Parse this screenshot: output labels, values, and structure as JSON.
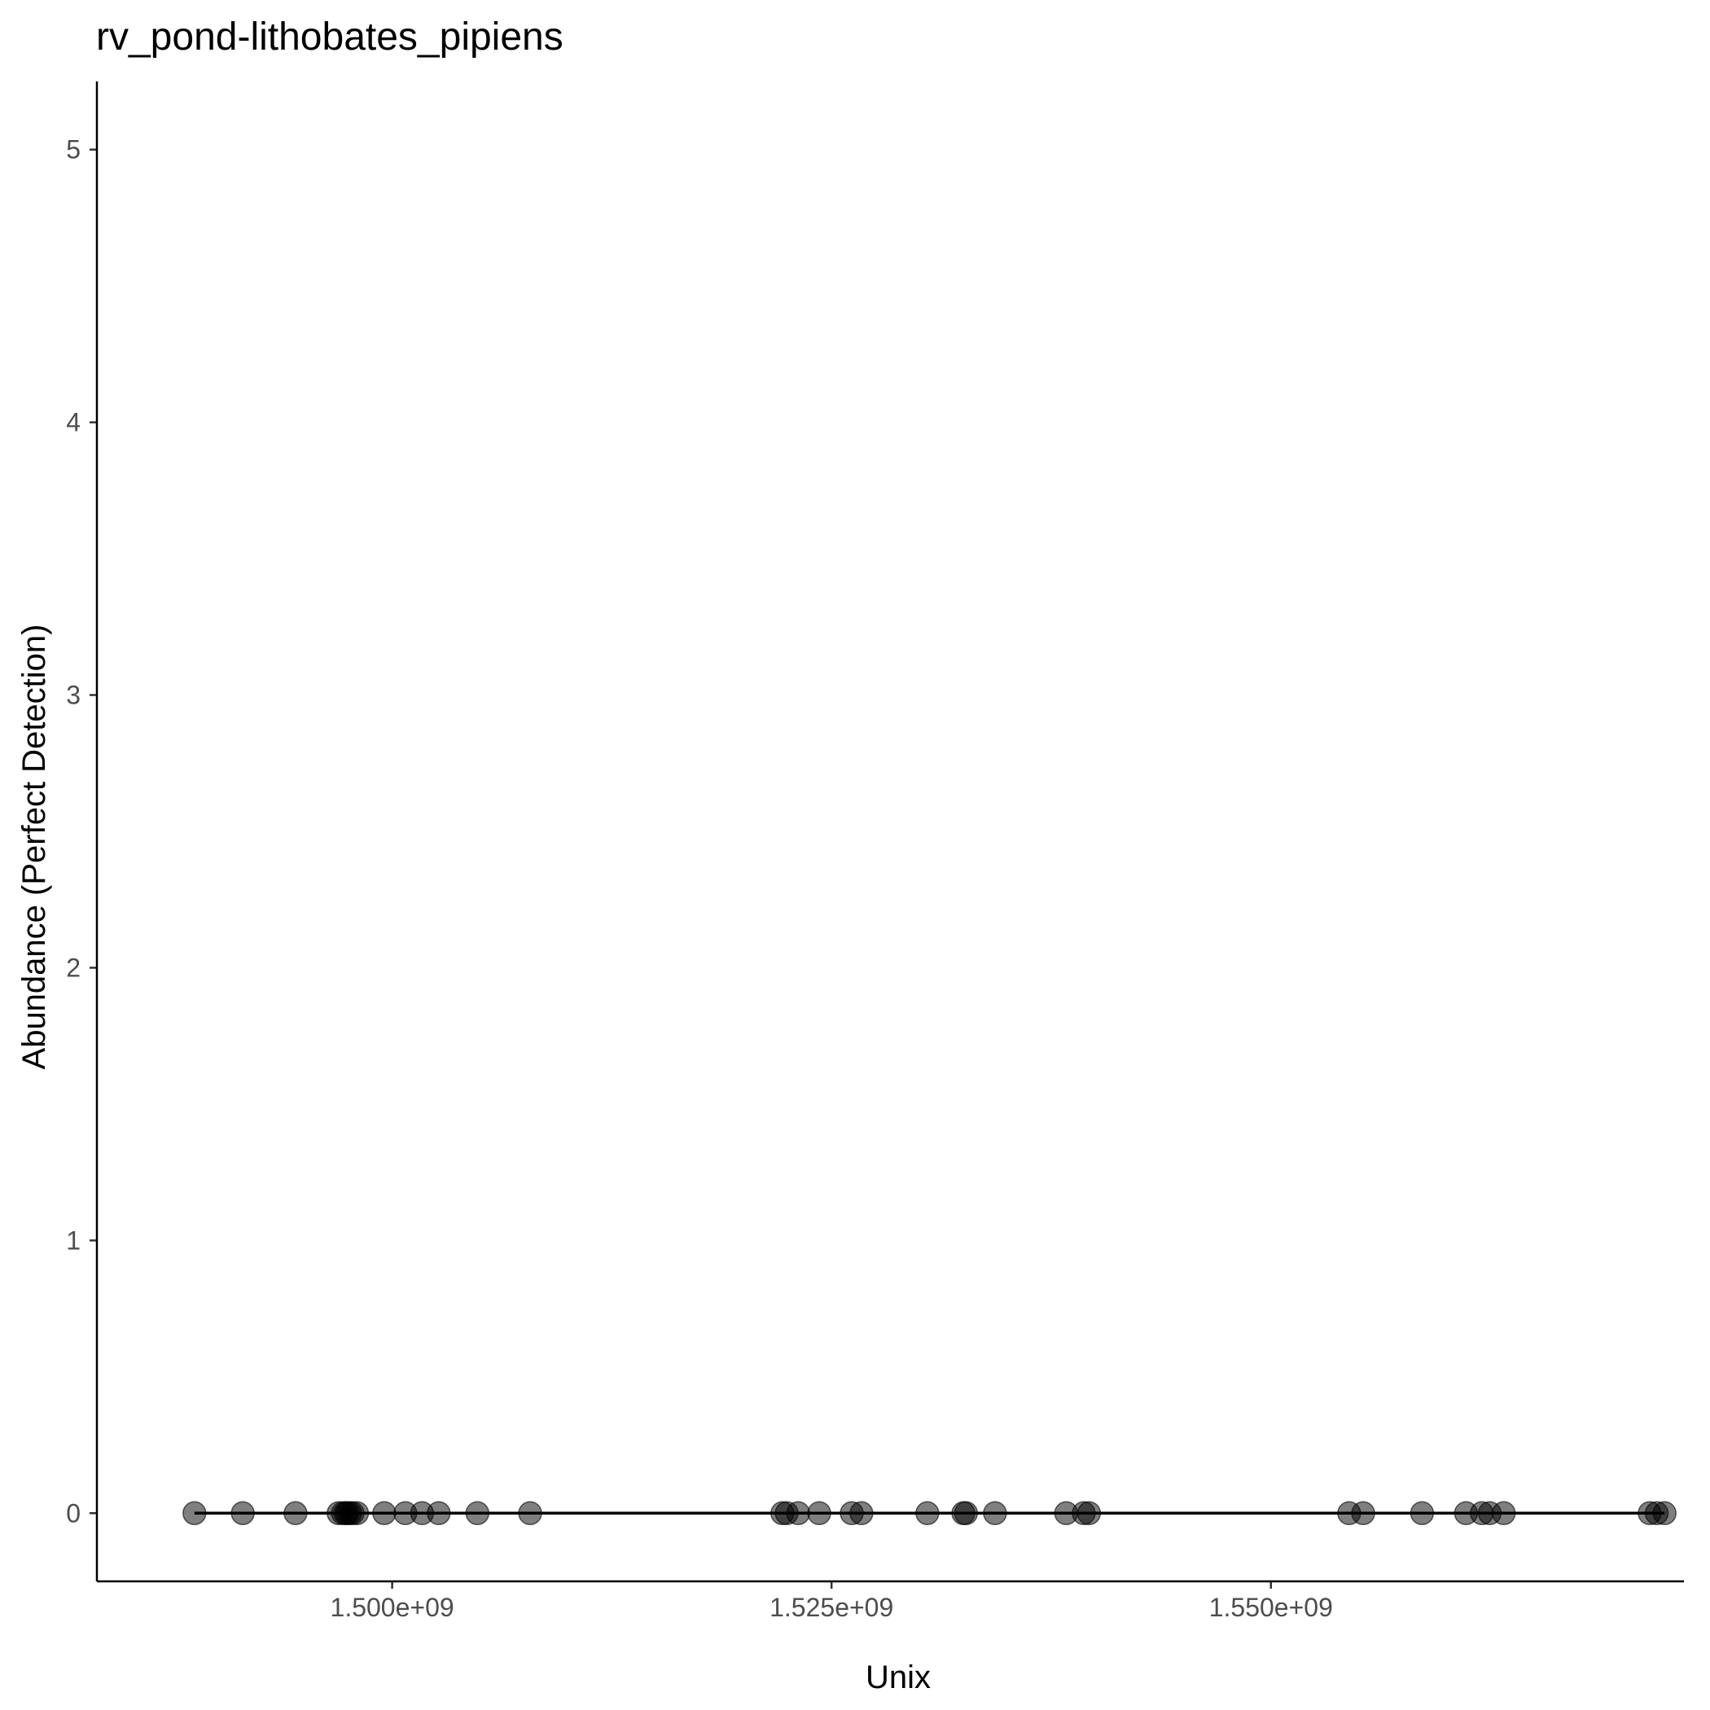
{
  "chart_data": {
    "type": "scatter",
    "title": "rv_pond-lithobates_pipiens",
    "xlabel": "Unix",
    "ylabel": "Abundance (Perfect Detection)",
    "xlim": [
      1483200000.0,
      1573500000.0
    ],
    "ylim": [
      -0.25,
      5.25
    ],
    "x_ticks": [
      1500000000.0,
      1525000000.0,
      1550000000.0
    ],
    "x_tick_labels": [
      "1.500e+09",
      "1.525e+09",
      "1.550e+09"
    ],
    "y_ticks": [
      0,
      1,
      2,
      3,
      4,
      5
    ],
    "y_tick_labels": [
      "0",
      "1",
      "2",
      "3",
      "4",
      "5"
    ],
    "grid": false,
    "point_color": "#000000",
    "point_alpha": 0.5,
    "line_color": "#000000",
    "series": [
      {
        "name": "observations",
        "x": [
          1488750000.0,
          1491500000.0,
          1494500000.0,
          1496950000.0,
          1497200000.0,
          1497350000.0,
          1497450000.0,
          1497600000.0,
          1497750000.0,
          1498000000.0,
          1499550000.0,
          1500750000.0,
          1501700000.0,
          1502650000.0,
          1504850000.0,
          1507850000.0,
          1522200000.0,
          1522450000.0,
          1523100000.0,
          1524300000.0,
          1526150000.0,
          1526700000.0,
          1530450000.0,
          1532500000.0,
          1532650000.0,
          1534300000.0,
          1538350000.0,
          1539350000.0,
          1539650000.0,
          1554450000.0,
          1555250000.0,
          1558600000.0,
          1561100000.0,
          1562000000.0,
          1562450000.0,
          1563250000.0,
          1571550000.0,
          1571950000.0,
          1572400000.0
        ],
        "y": [
          0,
          0,
          0,
          0,
          0,
          0,
          0,
          0,
          0,
          0,
          0,
          0,
          0,
          0,
          0,
          0,
          0,
          0,
          0,
          0,
          0,
          0,
          0,
          0,
          0,
          0,
          0,
          0,
          0,
          0,
          0,
          0,
          0,
          0,
          0,
          0,
          0,
          0,
          0
        ]
      }
    ],
    "fit_line": {
      "x": [
        1488750000.0,
        1572400000.0
      ],
      "y": [
        0,
        0
      ]
    }
  }
}
